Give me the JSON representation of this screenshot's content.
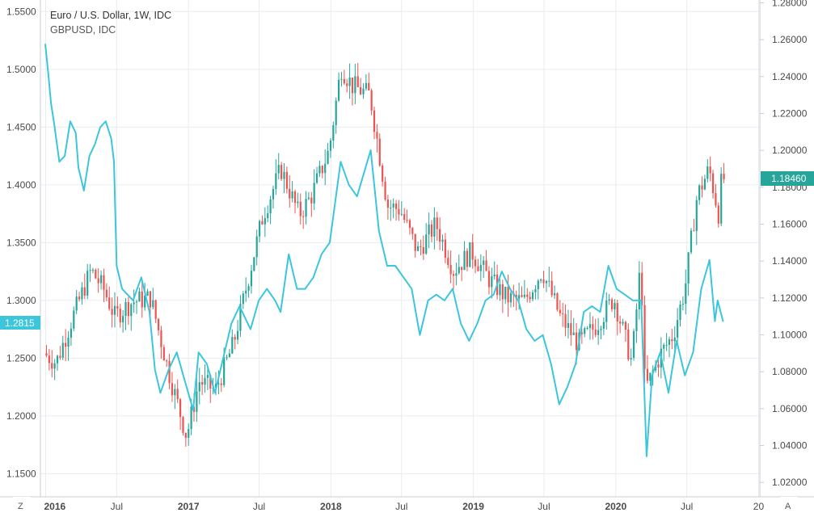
{
  "chart_data": {
    "type": "candlestick+line",
    "title": "Euro / U.S. Dollar, 1W, IDC",
    "subtitle": "GBPUSD, IDC",
    "colors": {
      "up": "#26a69a",
      "down": "#ef5350",
      "compare": "#3cc6dc",
      "grid": "#e9ecf0"
    },
    "x_ticks": [
      "2016",
      "Jul",
      "2017",
      "Jul",
      "2018",
      "Jul",
      "2019",
      "Jul",
      "2020",
      "Jul",
      "20"
    ],
    "x_ticks_bold": [
      "2016",
      "2017",
      "2018",
      "2019",
      "2020"
    ],
    "left_axis": {
      "series": "GBPUSD",
      "ticks": [
        "1.5500",
        "1.5000",
        "1.4500",
        "1.4000",
        "1.3500",
        "1.3000",
        "1.2500",
        "1.2000",
        "1.1500"
      ],
      "ylim": [
        1.13,
        1.56
      ]
    },
    "right_axis": {
      "series": "EURUSD",
      "ticks": [
        "1.28000",
        "1.26000",
        "1.24000",
        "1.22000",
        "1.20000",
        "1.18000",
        "1.16000",
        "1.14000",
        "1.12000",
        "1.10000",
        "1.08000",
        "1.06000",
        "1.04000",
        "1.02000"
      ],
      "ylim": [
        1.0122,
        1.2815
      ]
    },
    "last_value_left": "1.2815",
    "last_value_right": "1.18460",
    "corner_left": "Z",
    "corner_right": "A",
    "eurusd_path": [
      [
        "2015-12-31",
        1.09
      ],
      [
        "2016-02-01",
        1.085
      ],
      [
        "2016-03-15",
        1.11
      ],
      [
        "2016-04-30",
        1.135
      ],
      [
        "2016-06-01",
        1.125
      ],
      [
        "2016-06-30",
        1.11
      ],
      [
        "2016-08-15",
        1.118
      ],
      [
        "2016-09-30",
        1.12
      ],
      [
        "2016-11-15",
        1.08
      ],
      [
        "2016-12-31",
        1.045
      ],
      [
        "2017-02-01",
        1.075
      ],
      [
        "2017-03-15",
        1.07
      ],
      [
        "2017-04-30",
        1.095
      ],
      [
        "2017-06-01",
        1.125
      ],
      [
        "2017-07-15",
        1.165
      ],
      [
        "2017-08-30",
        1.19
      ],
      [
        "2017-10-15",
        1.165
      ],
      [
        "2017-11-15",
        1.175
      ],
      [
        "2017-12-31",
        1.2
      ],
      [
        "2018-01-31",
        1.245
      ],
      [
        "2018-03-01",
        1.235
      ],
      [
        "2018-04-15",
        1.23
      ],
      [
        "2018-05-30",
        1.17
      ],
      [
        "2018-07-01",
        1.168
      ],
      [
        "2018-08-15",
        1.145
      ],
      [
        "2018-10-01",
        1.16
      ],
      [
        "2018-11-15",
        1.135
      ],
      [
        "2018-12-31",
        1.145
      ],
      [
        "2019-02-15",
        1.13
      ],
      [
        "2019-03-31",
        1.12
      ],
      [
        "2019-05-15",
        1.118
      ],
      [
        "2019-06-30",
        1.135
      ],
      [
        "2019-08-15",
        1.11
      ],
      [
        "2019-10-01",
        1.095
      ],
      [
        "2019-11-15",
        1.105
      ],
      [
        "2019-12-31",
        1.12
      ],
      [
        "2020-02-15",
        1.085
      ],
      [
        "2020-03-09",
        1.14
      ],
      [
        "2020-03-20",
        1.07
      ],
      [
        "2020-04-30",
        1.09
      ],
      [
        "2020-05-31",
        1.1
      ],
      [
        "2020-06-30",
        1.125
      ],
      [
        "2020-07-31",
        1.175
      ],
      [
        "2020-08-31",
        1.19
      ],
      [
        "2020-09-25",
        1.165
      ],
      [
        "2020-10-02",
        1.1846
      ]
    ],
    "gbpusd_path": [
      [
        "2015-12-31",
        1.522
      ],
      [
        "2016-01-08",
        1.495
      ],
      [
        "2016-01-15",
        1.47
      ],
      [
        "2016-01-22",
        1.455
      ],
      [
        "2016-02-05",
        1.42
      ],
      [
        "2016-02-19",
        1.425
      ],
      [
        "2016-03-04",
        1.455
      ],
      [
        "2016-03-18",
        1.445
      ],
      [
        "2016-03-25",
        1.415
      ],
      [
        "2016-04-08",
        1.395
      ],
      [
        "2016-04-22",
        1.425
      ],
      [
        "2016-05-06",
        1.435
      ],
      [
        "2016-05-20",
        1.45
      ],
      [
        "2016-06-03",
        1.455
      ],
      [
        "2016-06-17",
        1.44
      ],
      [
        "2016-06-24",
        1.42
      ],
      [
        "2016-07-01",
        1.33
      ],
      [
        "2016-07-15",
        1.31
      ],
      [
        "2016-08-12",
        1.3
      ],
      [
        "2016-09-02",
        1.32
      ],
      [
        "2016-09-23",
        1.29
      ],
      [
        "2016-10-07",
        1.24
      ],
      [
        "2016-10-21",
        1.22
      ],
      [
        "2016-11-11",
        1.24
      ],
      [
        "2016-12-02",
        1.255
      ],
      [
        "2016-12-23",
        1.23
      ],
      [
        "2017-01-13",
        1.205
      ],
      [
        "2017-01-27",
        1.255
      ],
      [
        "2017-02-17",
        1.245
      ],
      [
        "2017-03-10",
        1.22
      ],
      [
        "2017-03-31",
        1.25
      ],
      [
        "2017-04-21",
        1.28
      ],
      [
        "2017-05-12",
        1.295
      ],
      [
        "2017-06-09",
        1.275
      ],
      [
        "2017-06-30",
        1.3
      ],
      [
        "2017-07-21",
        1.31
      ],
      [
        "2017-08-11",
        1.3
      ],
      [
        "2017-08-25",
        1.29
      ],
      [
        "2017-09-15",
        1.34
      ],
      [
        "2017-10-06",
        1.31
      ],
      [
        "2017-10-27",
        1.31
      ],
      [
        "2017-11-17",
        1.32
      ],
      [
        "2017-12-08",
        1.34
      ],
      [
        "2017-12-29",
        1.35
      ],
      [
        "2018-01-26",
        1.42
      ],
      [
        "2018-02-16",
        1.4
      ],
      [
        "2018-03-09",
        1.39
      ],
      [
        "2018-04-13",
        1.43
      ],
      [
        "2018-05-04",
        1.36
      ],
      [
        "2018-05-25",
        1.33
      ],
      [
        "2018-06-15",
        1.33
      ],
      [
        "2018-07-06",
        1.32
      ],
      [
        "2018-07-27",
        1.31
      ],
      [
        "2018-08-17",
        1.27
      ],
      [
        "2018-09-07",
        1.3
      ],
      [
        "2018-09-28",
        1.305
      ],
      [
        "2018-10-19",
        1.3
      ],
      [
        "2018-11-09",
        1.31
      ],
      [
        "2018-11-30",
        1.28
      ],
      [
        "2018-12-21",
        1.265
      ],
      [
        "2019-01-11",
        1.28
      ],
      [
        "2019-02-01",
        1.3
      ],
      [
        "2019-02-22",
        1.305
      ],
      [
        "2019-03-15",
        1.325
      ],
      [
        "2019-04-05",
        1.31
      ],
      [
        "2019-04-26",
        1.3
      ],
      [
        "2019-05-17",
        1.275
      ],
      [
        "2019-06-07",
        1.265
      ],
      [
        "2019-06-28",
        1.27
      ],
      [
        "2019-07-19",
        1.245
      ],
      [
        "2019-08-09",
        1.21
      ],
      [
        "2019-08-30",
        1.225
      ],
      [
        "2019-09-20",
        1.245
      ],
      [
        "2019-10-11",
        1.29
      ],
      [
        "2019-11-01",
        1.295
      ],
      [
        "2019-11-22",
        1.29
      ],
      [
        "2019-12-13",
        1.33
      ],
      [
        "2020-01-03",
        1.31
      ],
      [
        "2020-01-24",
        1.305
      ],
      [
        "2020-02-14",
        1.3
      ],
      [
        "2020-03-06",
        1.3
      ],
      [
        "2020-03-20",
        1.165
      ],
      [
        "2020-04-03",
        1.235
      ],
      [
        "2020-04-24",
        1.255
      ],
      [
        "2020-05-15",
        1.22
      ],
      [
        "2020-06-05",
        1.265
      ],
      [
        "2020-06-26",
        1.235
      ],
      [
        "2020-07-17",
        1.255
      ],
      [
        "2020-08-07",
        1.31
      ],
      [
        "2020-08-28",
        1.335
      ],
      [
        "2020-09-11",
        1.282
      ],
      [
        "2020-09-18",
        1.3
      ],
      [
        "2020-10-02",
        1.2815
      ]
    ]
  }
}
